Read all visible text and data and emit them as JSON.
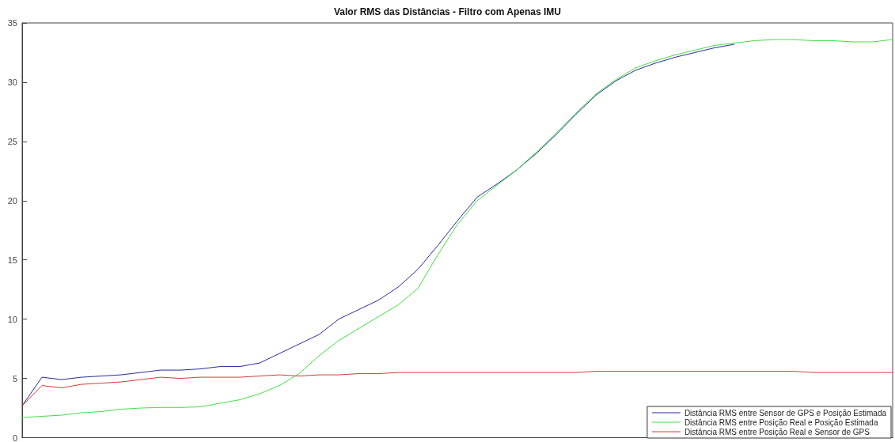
{
  "chart_data": {
    "type": "line",
    "title": "Valor RMS das Distâncias - Filtro com Apenas IMU",
    "categories": [
      null,
      null,
      null,
      null,
      null,
      null,
      null,
      null,
      null,
      null,
      null,
      null,
      null,
      null,
      null,
      null,
      null,
      null,
      null,
      null,
      null,
      null,
      null,
      null,
      null,
      null,
      null,
      null,
      null,
      null,
      null,
      null,
      null,
      null,
      null,
      null,
      null,
      null,
      null,
      null,
      null,
      null,
      null,
      null,
      null
    ],
    "series": [
      {
        "name": "Distância RMS entre Sensor de GPS e Posição Estimada",
        "color": "#2b2b9e",
        "values": [
          2.7,
          5.1,
          4.9,
          5.1,
          5.2,
          5.3,
          5.5,
          5.7,
          5.7,
          5.8,
          6.0,
          6.0,
          6.3,
          7.1,
          7.9,
          8.7,
          10.0,
          10.8,
          11.6,
          12.7,
          14.2,
          16.2,
          18.3,
          20.3,
          21.4,
          22.6,
          24.0,
          25.6,
          27.3,
          28.9,
          30.1,
          31.0,
          31.6,
          32.1,
          32.5,
          32.9,
          33.2,
          null,
          null,
          null,
          null,
          null,
          null,
          null,
          null
        ]
      },
      {
        "name": "Distância RMS entre Posição Real e Posição Estimada",
        "color": "#44dd44",
        "values": [
          1.7,
          1.8,
          1.9,
          2.1,
          2.2,
          2.4,
          2.5,
          2.55,
          2.55,
          2.6,
          2.9,
          3.2,
          3.7,
          4.4,
          5.4,
          6.9,
          8.2,
          9.2,
          10.2,
          11.2,
          12.6,
          15.4,
          18.0,
          20.0,
          21.3,
          22.6,
          24.1,
          25.7,
          27.4,
          29.0,
          30.2,
          31.2,
          31.8,
          32.3,
          32.7,
          33.1,
          33.3,
          33.5,
          33.6,
          33.6,
          33.5,
          33.5,
          33.4,
          33.4,
          33.6
        ]
      },
      {
        "name": "Distância RMS entre Posição Real e Sensor de GPS",
        "color": "#d93a3a",
        "values": [
          2.7,
          4.4,
          4.2,
          4.5,
          4.6,
          4.7,
          4.9,
          5.1,
          5.0,
          5.1,
          5.1,
          5.1,
          5.2,
          5.3,
          5.2,
          5.3,
          5.3,
          5.4,
          5.4,
          5.5,
          5.5,
          5.5,
          5.5,
          5.5,
          5.5,
          5.5,
          5.5,
          5.5,
          5.5,
          5.6,
          5.6,
          5.6,
          5.6,
          5.6,
          5.6,
          5.6,
          5.6,
          5.6,
          5.6,
          5.6,
          5.5,
          5.5,
          5.5,
          5.5,
          5.5
        ]
      }
    ],
    "ylim": [
      0,
      35
    ],
    "yticks": [
      0,
      5,
      10,
      15,
      20,
      25,
      30,
      35
    ],
    "legend": "bottom right",
    "marker": "none",
    "line_style": "solid"
  }
}
